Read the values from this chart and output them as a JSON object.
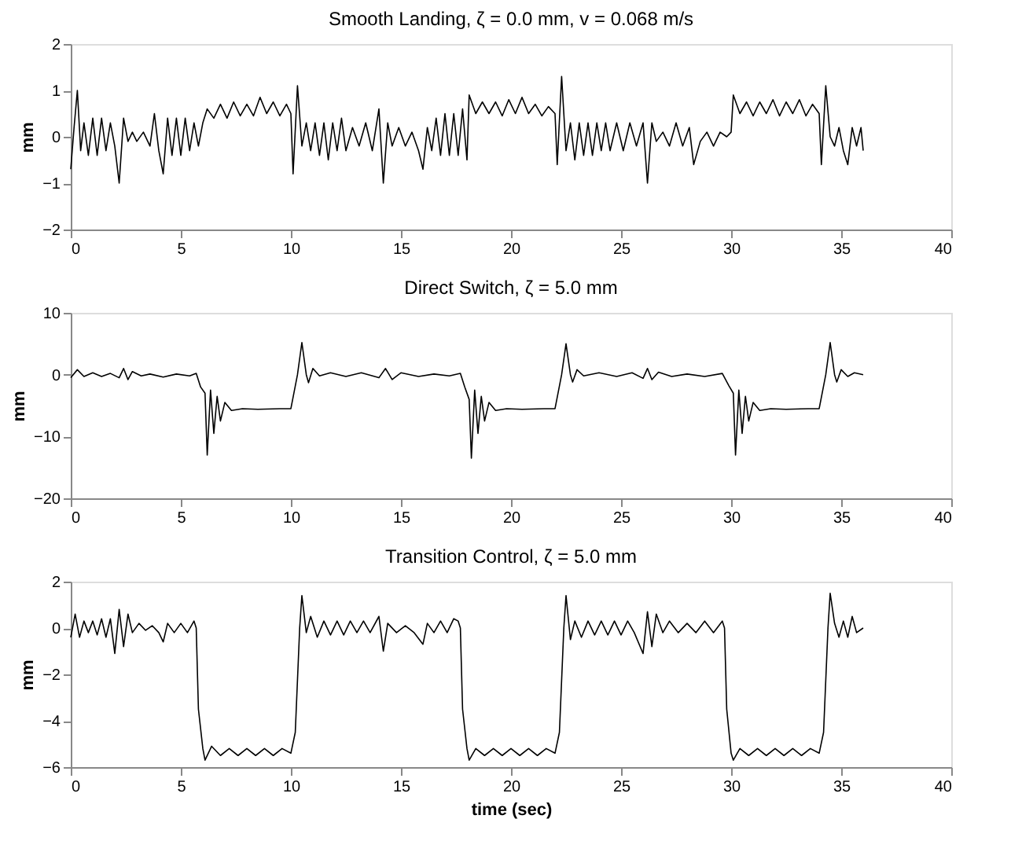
{
  "chart_data": [
    {
      "type": "line",
      "title": "Smooth Landing, ζ = 0.0 mm, v = 0.068 m/s",
      "ylabel": "mm",
      "xlim": [
        0,
        40
      ],
      "xticks": [
        0,
        5,
        10,
        15,
        20,
        25,
        30,
        35,
        40
      ],
      "ylim": [
        -2,
        2
      ],
      "yticks": [
        -2,
        -1,
        0,
        1,
        2
      ],
      "grid": false,
      "x": [
        0,
        0.15,
        0.3,
        0.45,
        0.6,
        0.8,
        1.0,
        1.2,
        1.4,
        1.6,
        1.8,
        2.0,
        2.2,
        2.4,
        2.6,
        2.8,
        3.0,
        3.3,
        3.6,
        3.8,
        4.0,
        4.2,
        4.4,
        4.6,
        4.8,
        5.0,
        5.2,
        5.4,
        5.6,
        5.8,
        6.0,
        6.2,
        6.5,
        6.8,
        7.1,
        7.4,
        7.7,
        8.0,
        8.3,
        8.6,
        8.9,
        9.2,
        9.5,
        9.8,
        10.0,
        10.1,
        10.3,
        10.5,
        10.7,
        10.9,
        11.1,
        11.3,
        11.5,
        11.7,
        11.9,
        12.1,
        12.3,
        12.5,
        12.8,
        13.1,
        13.4,
        13.7,
        14.0,
        14.2,
        14.4,
        14.6,
        14.9,
        15.2,
        15.5,
        15.8,
        16.0,
        16.2,
        16.4,
        16.6,
        16.8,
        17.0,
        17.2,
        17.4,
        17.6,
        17.8,
        18.0,
        18.1,
        18.4,
        18.7,
        19.0,
        19.3,
        19.6,
        19.9,
        20.2,
        20.5,
        20.8,
        21.1,
        21.4,
        21.7,
        22.0,
        22.1,
        22.3,
        22.5,
        22.7,
        22.9,
        23.1,
        23.3,
        23.5,
        23.7,
        23.9,
        24.1,
        24.3,
        24.5,
        24.8,
        25.1,
        25.4,
        25.7,
        26.0,
        26.2,
        26.4,
        26.6,
        26.9,
        27.2,
        27.5,
        27.8,
        28.1,
        28.3,
        28.6,
        28.9,
        29.2,
        29.5,
        29.8,
        30.0,
        30.1,
        30.4,
        30.7,
        31.0,
        31.3,
        31.6,
        31.9,
        32.2,
        32.5,
        32.8,
        33.1,
        33.4,
        33.7,
        34.0,
        34.1,
        34.3,
        34.5,
        34.7,
        34.9,
        35.1,
        35.3,
        35.5,
        35.7,
        35.9,
        36.0
      ],
      "series": [
        {
          "color": "#000000",
          "values": [
            -0.7,
            0.2,
            1.0,
            -0.3,
            0.3,
            -0.4,
            0.4,
            -0.4,
            0.4,
            -0.3,
            0.3,
            -0.2,
            -1.0,
            0.4,
            -0.1,
            0.1,
            -0.1,
            0.1,
            -0.2,
            0.5,
            -0.3,
            -0.8,
            0.4,
            -0.4,
            0.4,
            -0.4,
            0.4,
            -0.3,
            0.3,
            -0.2,
            0.3,
            0.6,
            0.4,
            0.7,
            0.4,
            0.75,
            0.45,
            0.7,
            0.45,
            0.85,
            0.5,
            0.75,
            0.45,
            0.7,
            0.5,
            -0.8,
            1.1,
            -0.2,
            0.3,
            -0.3,
            0.3,
            -0.4,
            0.3,
            -0.5,
            0.3,
            -0.3,
            0.4,
            -0.3,
            0.2,
            -0.2,
            0.3,
            -0.3,
            0.6,
            -1.0,
            0.3,
            -0.2,
            0.2,
            -0.2,
            0.1,
            -0.3,
            -0.7,
            0.2,
            -0.3,
            0.4,
            -0.4,
            0.5,
            -0.4,
            0.5,
            -0.4,
            0.6,
            -0.5,
            0.9,
            0.5,
            0.75,
            0.5,
            0.75,
            0.45,
            0.8,
            0.5,
            0.85,
            0.5,
            0.7,
            0.45,
            0.65,
            0.5,
            -0.6,
            1.3,
            -0.3,
            0.3,
            -0.5,
            0.3,
            -0.4,
            0.3,
            -0.4,
            0.3,
            -0.3,
            0.3,
            -0.3,
            0.3,
            -0.3,
            0.3,
            -0.2,
            0.3,
            -1.0,
            0.3,
            -0.1,
            0.1,
            -0.2,
            0.3,
            -0.2,
            0.2,
            -0.6,
            -0.1,
            0.1,
            -0.2,
            0.1,
            0.0,
            0.1,
            0.9,
            0.5,
            0.75,
            0.45,
            0.75,
            0.5,
            0.8,
            0.45,
            0.75,
            0.5,
            0.8,
            0.45,
            0.7,
            0.5,
            -0.6,
            1.1,
            0.0,
            -0.2,
            0.2,
            -0.3,
            -0.6,
            0.2,
            -0.2,
            0.2,
            -0.3
          ]
        }
      ]
    },
    {
      "type": "line",
      "title": "Direct Switch, ζ = 5.0 mm",
      "ylabel": "mm",
      "xlim": [
        0,
        40
      ],
      "xticks": [
        0,
        5,
        10,
        15,
        20,
        25,
        30,
        35,
        40
      ],
      "ylim": [
        -20,
        10
      ],
      "yticks": [
        -20,
        -10,
        0,
        10
      ],
      "grid": false,
      "x": [
        0,
        0.3,
        0.6,
        1.0,
        1.4,
        1.8,
        2.2,
        2.4,
        2.6,
        2.8,
        3.2,
        3.6,
        4.2,
        4.8,
        5.4,
        5.7,
        5.9,
        6.1,
        6.2,
        6.35,
        6.5,
        6.65,
        6.8,
        7.0,
        7.3,
        7.8,
        8.5,
        9.5,
        10.0,
        10.3,
        10.5,
        10.7,
        10.8,
        11.0,
        11.3,
        11.8,
        12.5,
        13.2,
        14.0,
        14.3,
        14.6,
        15.0,
        15.8,
        16.5,
        17.2,
        17.7,
        17.9,
        18.1,
        18.2,
        18.35,
        18.5,
        18.65,
        18.8,
        19.0,
        19.3,
        19.8,
        20.5,
        21.5,
        22.0,
        22.3,
        22.5,
        22.7,
        22.8,
        23.0,
        23.3,
        24.0,
        24.8,
        25.5,
        26.0,
        26.2,
        26.4,
        26.7,
        27.3,
        28.0,
        28.8,
        29.6,
        29.9,
        30.1,
        30.2,
        30.35,
        30.5,
        30.65,
        30.8,
        31.0,
        31.3,
        31.8,
        32.5,
        33.5,
        34.0,
        34.3,
        34.5,
        34.7,
        34.8,
        35.0,
        35.3,
        35.6,
        36.0
      ],
      "series": [
        {
          "color": "#000000",
          "values": [
            -0.5,
            0.8,
            -0.3,
            0.3,
            -0.3,
            0.2,
            -0.5,
            1.0,
            -0.8,
            0.5,
            -0.2,
            0.1,
            -0.4,
            0.1,
            -0.2,
            0.2,
            -2.0,
            -3.0,
            -13,
            -2.5,
            -9.5,
            -3.5,
            -7.5,
            -4.5,
            -5.8,
            -5.5,
            -5.6,
            -5.5,
            -5.5,
            0,
            5.2,
            0,
            -1.3,
            1.0,
            -0.2,
            0.3,
            -0.3,
            0.3,
            -0.5,
            1.0,
            -0.8,
            0.3,
            -0.3,
            0.1,
            -0.2,
            0.2,
            -2.0,
            -4,
            -13.5,
            -2.5,
            -9.5,
            -3.5,
            -7.5,
            -4.5,
            -5.8,
            -5.5,
            -5.6,
            -5.5,
            -5.5,
            0,
            5.0,
            0,
            -1.2,
            0.8,
            -0.2,
            0.3,
            -0.3,
            0.3,
            -0.6,
            1.0,
            -0.8,
            0.4,
            -0.3,
            0.1,
            -0.3,
            0.2,
            -1.8,
            -3,
            -13,
            -2.5,
            -9.5,
            -3.5,
            -7.5,
            -4.5,
            -5.8,
            -5.5,
            -5.6,
            -5.5,
            -5.5,
            0,
            5.2,
            0,
            -1.2,
            0.8,
            -0.3,
            0.3,
            0.0
          ]
        }
      ]
    },
    {
      "type": "line",
      "title": "Transition Control, ζ = 5.0 mm",
      "xlabel": "time (sec)",
      "ylabel": "mm",
      "xlim": [
        0,
        40
      ],
      "xticks": [
        0,
        5,
        10,
        15,
        20,
        25,
        30,
        35,
        40
      ],
      "ylim": [
        -6,
        2
      ],
      "yticks": [
        -6,
        -4,
        -2,
        0,
        2
      ],
      "grid": false,
      "x": [
        0,
        0.2,
        0.4,
        0.6,
        0.8,
        1.0,
        1.2,
        1.4,
        1.6,
        1.8,
        2.0,
        2.2,
        2.4,
        2.6,
        2.8,
        3.1,
        3.4,
        3.7,
        4.0,
        4.2,
        4.4,
        4.7,
        5.0,
        5.3,
        5.6,
        5.7,
        5.8,
        6.0,
        6.1,
        6.4,
        6.8,
        7.2,
        7.6,
        8.0,
        8.4,
        8.8,
        9.2,
        9.6,
        10.0,
        10.2,
        10.4,
        10.5,
        10.7,
        10.9,
        11.2,
        11.5,
        11.8,
        12.1,
        12.4,
        12.7,
        13.0,
        13.3,
        13.6,
        14.0,
        14.2,
        14.4,
        14.8,
        15.2,
        15.6,
        16.0,
        16.2,
        16.5,
        16.8,
        17.1,
        17.4,
        17.6,
        17.7,
        17.8,
        18.0,
        18.1,
        18.4,
        18.8,
        19.2,
        19.6,
        20.0,
        20.4,
        20.8,
        21.2,
        21.6,
        22.0,
        22.2,
        22.4,
        22.5,
        22.7,
        22.9,
        23.2,
        23.5,
        23.8,
        24.1,
        24.4,
        24.7,
        25.0,
        25.3,
        25.6,
        26.0,
        26.2,
        26.4,
        26.6,
        26.9,
        27.2,
        27.6,
        28.0,
        28.4,
        28.8,
        29.2,
        29.6,
        29.7,
        29.8,
        30.0,
        30.1,
        30.4,
        30.8,
        31.2,
        31.6,
        32.0,
        32.4,
        32.8,
        33.2,
        33.6,
        34.0,
        34.2,
        34.4,
        34.5,
        34.7,
        34.9,
        35.1,
        35.3,
        35.5,
        35.7,
        36.0
      ],
      "series": [
        {
          "color": "#000000",
          "values": [
            -0.4,
            0.6,
            -0.4,
            0.3,
            -0.2,
            0.3,
            -0.3,
            0.4,
            -0.4,
            0.4,
            -1.1,
            0.8,
            -0.8,
            0.6,
            -0.2,
            0.2,
            -0.1,
            0.1,
            -0.2,
            -0.6,
            0.2,
            -0.2,
            0.2,
            -0.2,
            0.3,
            0.0,
            -3.5,
            -5.2,
            -5.7,
            -5.1,
            -5.5,
            -5.2,
            -5.5,
            -5.2,
            -5.5,
            -5.2,
            -5.5,
            -5.2,
            -5.4,
            -4.5,
            0.0,
            1.4,
            -0.2,
            0.5,
            -0.4,
            0.3,
            -0.3,
            0.3,
            -0.3,
            0.3,
            -0.2,
            0.3,
            -0.2,
            0.5,
            -1.0,
            0.2,
            -0.2,
            0.1,
            -0.2,
            -0.7,
            0.2,
            -0.2,
            0.3,
            -0.2,
            0.4,
            0.3,
            0.0,
            -3.5,
            -5.2,
            -5.7,
            -5.2,
            -5.5,
            -5.2,
            -5.5,
            -5.2,
            -5.5,
            -5.2,
            -5.5,
            -5.2,
            -5.4,
            -4.5,
            0.0,
            1.4,
            -0.5,
            0.3,
            -0.4,
            0.3,
            -0.3,
            0.3,
            -0.3,
            0.3,
            -0.3,
            0.3,
            -0.2,
            -1.1,
            0.7,
            -0.8,
            0.6,
            -0.2,
            0.3,
            -0.2,
            0.2,
            -0.2,
            0.3,
            -0.2,
            0.3,
            0.0,
            -3.5,
            -5.4,
            -5.7,
            -5.2,
            -5.5,
            -5.2,
            -5.5,
            -5.2,
            -5.5,
            -5.2,
            -5.5,
            -5.2,
            -5.4,
            -4.5,
            0.0,
            1.5,
            0.2,
            -0.4,
            0.3,
            -0.4,
            0.5,
            -0.2,
            0.0
          ]
        }
      ]
    }
  ]
}
